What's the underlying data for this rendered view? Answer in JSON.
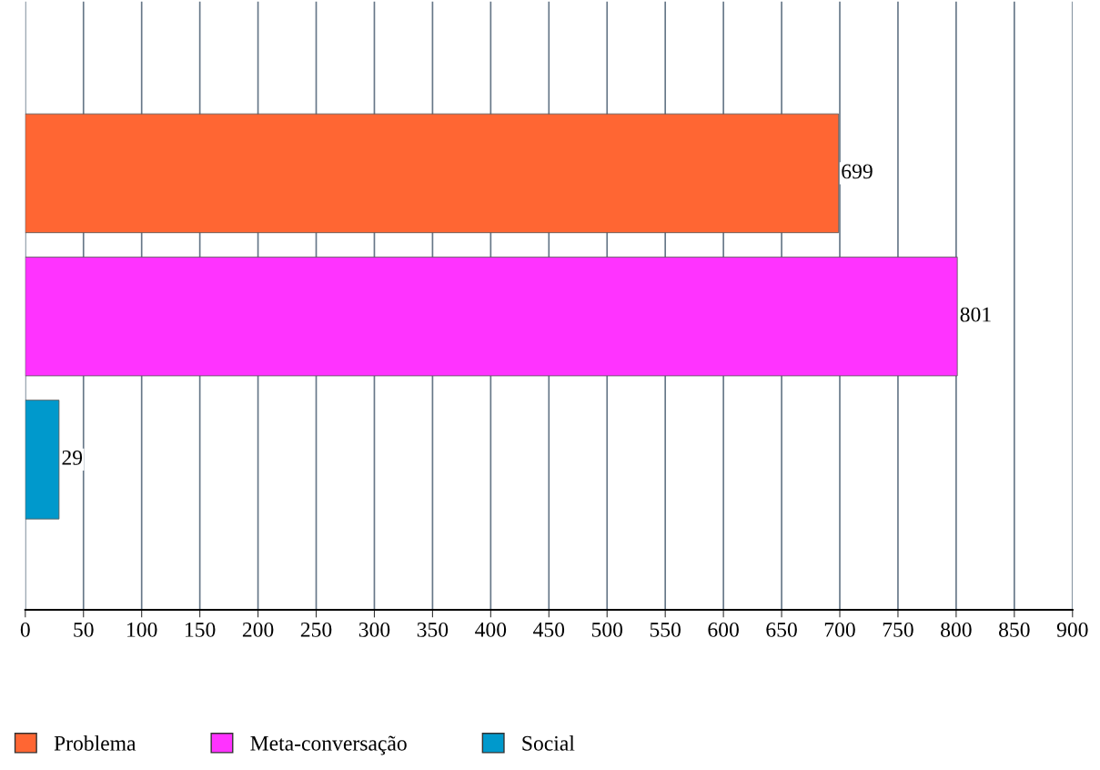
{
  "chart_data": {
    "type": "bar",
    "orientation": "horizontal",
    "categories": [
      null,
      null,
      null
    ],
    "series": [
      {
        "name": "Problema",
        "color": "#ff6633",
        "values": [
          699,
          null,
          null
        ]
      },
      {
        "name": "Meta-conversação",
        "color": "#ff33ff",
        "values": [
          null,
          801,
          null
        ]
      },
      {
        "name": "Social",
        "color": "#0099cc",
        "values": [
          null,
          null,
          29
        ]
      }
    ],
    "xlim": [
      0,
      900
    ],
    "xticks": [
      0,
      50,
      100,
      150,
      200,
      250,
      300,
      350,
      400,
      450,
      500,
      550,
      600,
      650,
      700,
      750,
      800,
      850,
      900
    ],
    "grid": "x",
    "legend": "bottom left",
    "data_labels": true
  }
}
